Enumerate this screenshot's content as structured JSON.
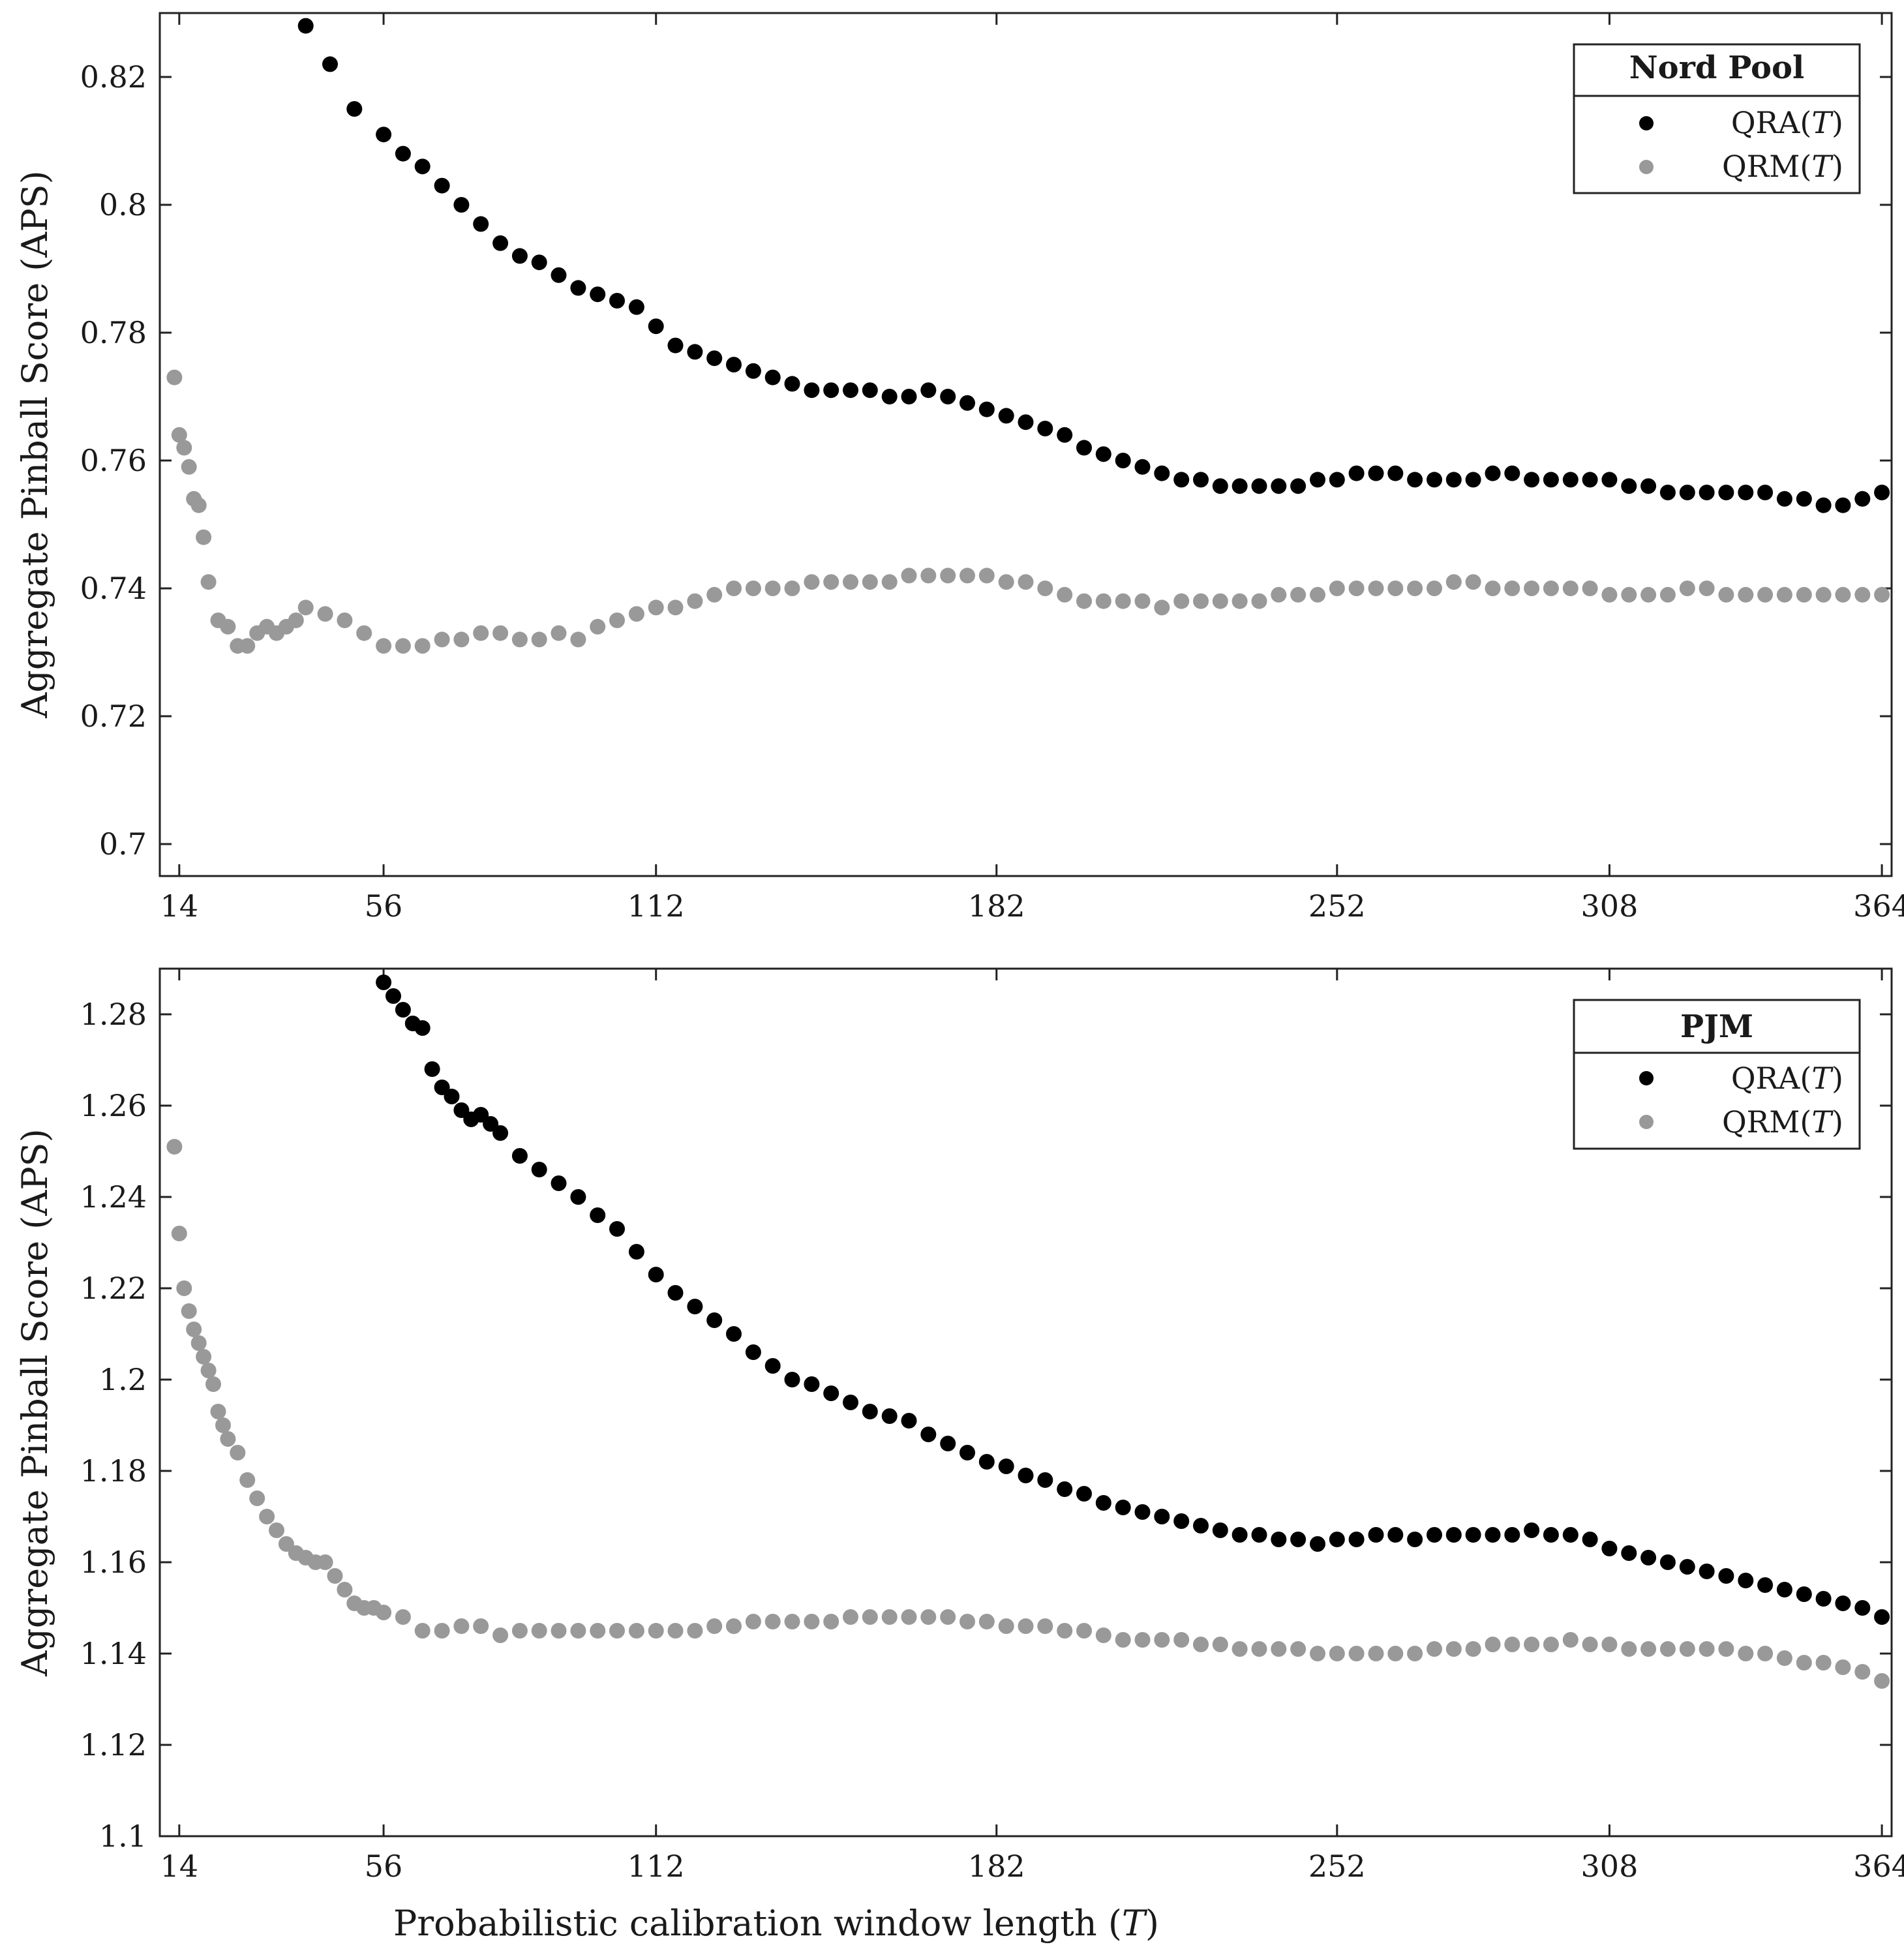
{
  "chart_data": [
    {
      "type": "scatter",
      "panel": "top",
      "legend_title": "Nord Pool",
      "legend_position": "top-right",
      "ylabel": "Aggregate Pinball Score (APS)",
      "xlabel": "",
      "xlim": [
        10,
        366
      ],
      "ylim": [
        0.695,
        0.83
      ],
      "xticks": [
        14,
        56,
        112,
        182,
        252,
        308,
        364
      ],
      "xtick_labels": [
        "14",
        "56",
        "112",
        "182",
        "252",
        "308",
        "364"
      ],
      "yticks": [
        0.7,
        0.72,
        0.74,
        0.76,
        0.78,
        0.8,
        0.82
      ],
      "ytick_labels": [
        "0.7",
        "0.72",
        "0.74",
        "0.76",
        "0.78",
        "0.8",
        "0.82"
      ],
      "series": [
        {
          "name": "QRA(T)",
          "label_text": "QRA",
          "color": "#000000",
          "x": [
            40,
            45,
            50,
            56,
            60,
            64,
            68,
            72,
            76,
            80,
            84,
            88,
            92,
            96,
            100,
            104,
            108,
            112,
            116,
            120,
            124,
            128,
            132,
            136,
            140,
            144,
            148,
            152,
            156,
            160,
            164,
            168,
            172,
            176,
            180,
            184,
            188,
            192,
            196,
            200,
            204,
            208,
            212,
            216,
            220,
            224,
            228,
            232,
            236,
            240,
            244,
            248,
            252,
            256,
            260,
            264,
            268,
            272,
            276,
            280,
            284,
            288,
            292,
            296,
            300,
            304,
            308,
            312,
            316,
            320,
            324,
            328,
            332,
            336,
            340,
            344,
            348,
            352,
            356,
            360,
            364
          ],
          "y": [
            0.828,
            0.822,
            0.815,
            0.811,
            0.808,
            0.806,
            0.803,
            0.8,
            0.797,
            0.794,
            0.792,
            0.791,
            0.789,
            0.787,
            0.786,
            0.785,
            0.784,
            0.781,
            0.778,
            0.777,
            0.776,
            0.775,
            0.774,
            0.773,
            0.772,
            0.771,
            0.771,
            0.771,
            0.771,
            0.77,
            0.77,
            0.771,
            0.77,
            0.769,
            0.768,
            0.767,
            0.766,
            0.765,
            0.764,
            0.762,
            0.761,
            0.76,
            0.759,
            0.758,
            0.757,
            0.757,
            0.756,
            0.756,
            0.756,
            0.756,
            0.756,
            0.757,
            0.757,
            0.758,
            0.758,
            0.758,
            0.757,
            0.757,
            0.757,
            0.757,
            0.758,
            0.758,
            0.757,
            0.757,
            0.757,
            0.757,
            0.757,
            0.756,
            0.756,
            0.755,
            0.755,
            0.755,
            0.755,
            0.755,
            0.755,
            0.754,
            0.754,
            0.753,
            0.753,
            0.754,
            0.755
          ]
        },
        {
          "name": "QRM(T)",
          "label_text": "QRM",
          "color": "#999999",
          "x": [
            13,
            14,
            15,
            16,
            17,
            18,
            19,
            20,
            22,
            24,
            26,
            28,
            30,
            32,
            34,
            36,
            38,
            40,
            44,
            48,
            52,
            56,
            60,
            64,
            68,
            72,
            76,
            80,
            84,
            88,
            92,
            96,
            100,
            104,
            108,
            112,
            116,
            120,
            124,
            128,
            132,
            136,
            140,
            144,
            148,
            152,
            156,
            160,
            164,
            168,
            172,
            176,
            180,
            184,
            188,
            192,
            196,
            200,
            204,
            208,
            212,
            216,
            220,
            224,
            228,
            232,
            236,
            240,
            244,
            248,
            252,
            256,
            260,
            264,
            268,
            272,
            276,
            280,
            284,
            288,
            292,
            296,
            300,
            304,
            308,
            312,
            316,
            320,
            324,
            328,
            332,
            336,
            340,
            344,
            348,
            352,
            356,
            360,
            364
          ],
          "y": [
            0.773,
            0.764,
            0.762,
            0.759,
            0.754,
            0.753,
            0.748,
            0.741,
            0.735,
            0.734,
            0.731,
            0.731,
            0.733,
            0.734,
            0.733,
            0.734,
            0.735,
            0.737,
            0.736,
            0.735,
            0.733,
            0.731,
            0.731,
            0.731,
            0.732,
            0.732,
            0.733,
            0.733,
            0.732,
            0.732,
            0.733,
            0.732,
            0.734,
            0.735,
            0.736,
            0.737,
            0.737,
            0.738,
            0.739,
            0.74,
            0.74,
            0.74,
            0.74,
            0.741,
            0.741,
            0.741,
            0.741,
            0.741,
            0.742,
            0.742,
            0.742,
            0.742,
            0.742,
            0.741,
            0.741,
            0.74,
            0.739,
            0.738,
            0.738,
            0.738,
            0.738,
            0.737,
            0.738,
            0.738,
            0.738,
            0.738,
            0.738,
            0.739,
            0.739,
            0.739,
            0.74,
            0.74,
            0.74,
            0.74,
            0.74,
            0.74,
            0.741,
            0.741,
            0.74,
            0.74,
            0.74,
            0.74,
            0.74,
            0.74,
            0.739,
            0.739,
            0.739,
            0.739,
            0.74,
            0.74,
            0.739,
            0.739,
            0.739,
            0.739,
            0.739,
            0.739,
            0.739,
            0.739,
            0.739
          ]
        }
      ]
    },
    {
      "type": "scatter",
      "panel": "bottom",
      "legend_title": "PJM",
      "legend_position": "top-right",
      "ylabel": "Aggregate Pinball Score (APS)",
      "xlabel": "Probabilistic calibration window length",
      "xlim": [
        10,
        366
      ],
      "ylim": [
        1.1,
        1.29
      ],
      "xticks": [
        14,
        56,
        112,
        182,
        252,
        308,
        364
      ],
      "xtick_labels": [
        "14",
        "56",
        "112",
        "182",
        "252",
        "308",
        "364"
      ],
      "yticks": [
        1.1,
        1.12,
        1.14,
        1.16,
        1.18,
        1.2,
        1.22,
        1.24,
        1.26,
        1.28
      ],
      "ytick_labels": [
        "1.1",
        "1.12",
        "1.14",
        "1.16",
        "1.18",
        "1.2",
        "1.22",
        "1.24",
        "1.26",
        "1.28"
      ],
      "series": [
        {
          "name": "QRA(T)",
          "label_text": "QRA",
          "color": "#000000",
          "x": [
            56,
            58,
            60,
            62,
            64,
            66,
            68,
            70,
            72,
            74,
            76,
            78,
            80,
            84,
            88,
            92,
            96,
            100,
            104,
            108,
            112,
            116,
            120,
            124,
            128,
            132,
            136,
            140,
            144,
            148,
            152,
            156,
            160,
            164,
            168,
            172,
            176,
            180,
            184,
            188,
            192,
            196,
            200,
            204,
            208,
            212,
            216,
            220,
            224,
            228,
            232,
            236,
            240,
            244,
            248,
            252,
            256,
            260,
            264,
            268,
            272,
            276,
            280,
            284,
            288,
            292,
            296,
            300,
            304,
            308,
            312,
            316,
            320,
            324,
            328,
            332,
            336,
            340,
            344,
            348,
            352,
            356,
            360,
            364
          ],
          "y": [
            1.287,
            1.284,
            1.281,
            1.278,
            1.277,
            1.268,
            1.264,
            1.262,
            1.259,
            1.257,
            1.258,
            1.256,
            1.254,
            1.249,
            1.246,
            1.243,
            1.24,
            1.236,
            1.233,
            1.228,
            1.223,
            1.219,
            1.216,
            1.213,
            1.21,
            1.206,
            1.203,
            1.2,
            1.199,
            1.197,
            1.195,
            1.193,
            1.192,
            1.191,
            1.188,
            1.186,
            1.184,
            1.182,
            1.181,
            1.179,
            1.178,
            1.176,
            1.175,
            1.173,
            1.172,
            1.171,
            1.17,
            1.169,
            1.168,
            1.167,
            1.166,
            1.166,
            1.165,
            1.165,
            1.164,
            1.165,
            1.165,
            1.166,
            1.166,
            1.165,
            1.166,
            1.166,
            1.166,
            1.166,
            1.166,
            1.167,
            1.166,
            1.166,
            1.165,
            1.163,
            1.162,
            1.161,
            1.16,
            1.159,
            1.158,
            1.157,
            1.156,
            1.155,
            1.154,
            1.153,
            1.152,
            1.151,
            1.15,
            1.148
          ]
        },
        {
          "name": "QRM(T)",
          "label_text": "QRM",
          "color": "#999999",
          "x": [
            13,
            14,
            15,
            16,
            17,
            18,
            19,
            20,
            21,
            22,
            23,
            24,
            26,
            28,
            30,
            32,
            34,
            36,
            38,
            40,
            42,
            44,
            46,
            48,
            50,
            52,
            54,
            56,
            60,
            64,
            68,
            72,
            76,
            80,
            84,
            88,
            92,
            96,
            100,
            104,
            108,
            112,
            116,
            120,
            124,
            128,
            132,
            136,
            140,
            144,
            148,
            152,
            156,
            160,
            164,
            168,
            172,
            176,
            180,
            184,
            188,
            192,
            196,
            200,
            204,
            208,
            212,
            216,
            220,
            224,
            228,
            232,
            236,
            240,
            244,
            248,
            252,
            256,
            260,
            264,
            268,
            272,
            276,
            280,
            284,
            288,
            292,
            296,
            300,
            304,
            308,
            312,
            316,
            320,
            324,
            328,
            332,
            336,
            340,
            344,
            348,
            352,
            356,
            360,
            364
          ],
          "y": [
            1.251,
            1.232,
            1.22,
            1.215,
            1.211,
            1.208,
            1.205,
            1.202,
            1.199,
            1.193,
            1.19,
            1.187,
            1.184,
            1.178,
            1.174,
            1.17,
            1.167,
            1.164,
            1.162,
            1.161,
            1.16,
            1.16,
            1.157,
            1.154,
            1.151,
            1.15,
            1.15,
            1.149,
            1.148,
            1.145,
            1.145,
            1.146,
            1.146,
            1.144,
            1.145,
            1.145,
            1.145,
            1.145,
            1.145,
            1.145,
            1.145,
            1.145,
            1.145,
            1.145,
            1.146,
            1.146,
            1.147,
            1.147,
            1.147,
            1.147,
            1.147,
            1.148,
            1.148,
            1.148,
            1.148,
            1.148,
            1.148,
            1.147,
            1.147,
            1.146,
            1.146,
            1.146,
            1.145,
            1.145,
            1.144,
            1.143,
            1.143,
            1.143,
            1.143,
            1.142,
            1.142,
            1.141,
            1.141,
            1.141,
            1.141,
            1.14,
            1.14,
            1.14,
            1.14,
            1.14,
            1.14,
            1.141,
            1.141,
            1.141,
            1.142,
            1.142,
            1.142,
            1.142,
            1.143,
            1.142,
            1.142,
            1.141,
            1.141,
            1.141,
            1.141,
            1.141,
            1.141,
            1.14,
            1.14,
            1.139,
            1.138,
            1.138,
            1.137,
            1.136,
            1.134
          ]
        }
      ]
    }
  ]
}
